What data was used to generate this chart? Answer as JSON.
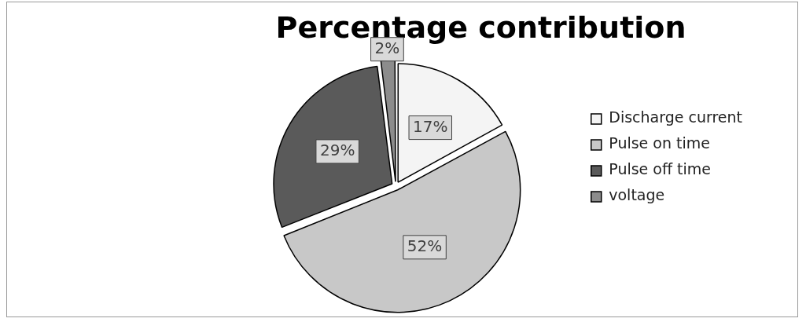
{
  "chart_data": {
    "type": "pie",
    "title": "Percentage contribution",
    "categories": [
      "Discharge current",
      "Pulse on time",
      "Pulse off time",
      "voltage"
    ],
    "values": [
      17,
      52,
      29,
      2
    ],
    "colors": [
      "#f4f4f4",
      "#c8c8c8",
      "#5a5a5a",
      "#8c8c8c"
    ],
    "value_labels": [
      "17%",
      "52%",
      "29%",
      "2%"
    ],
    "legend": "right"
  }
}
